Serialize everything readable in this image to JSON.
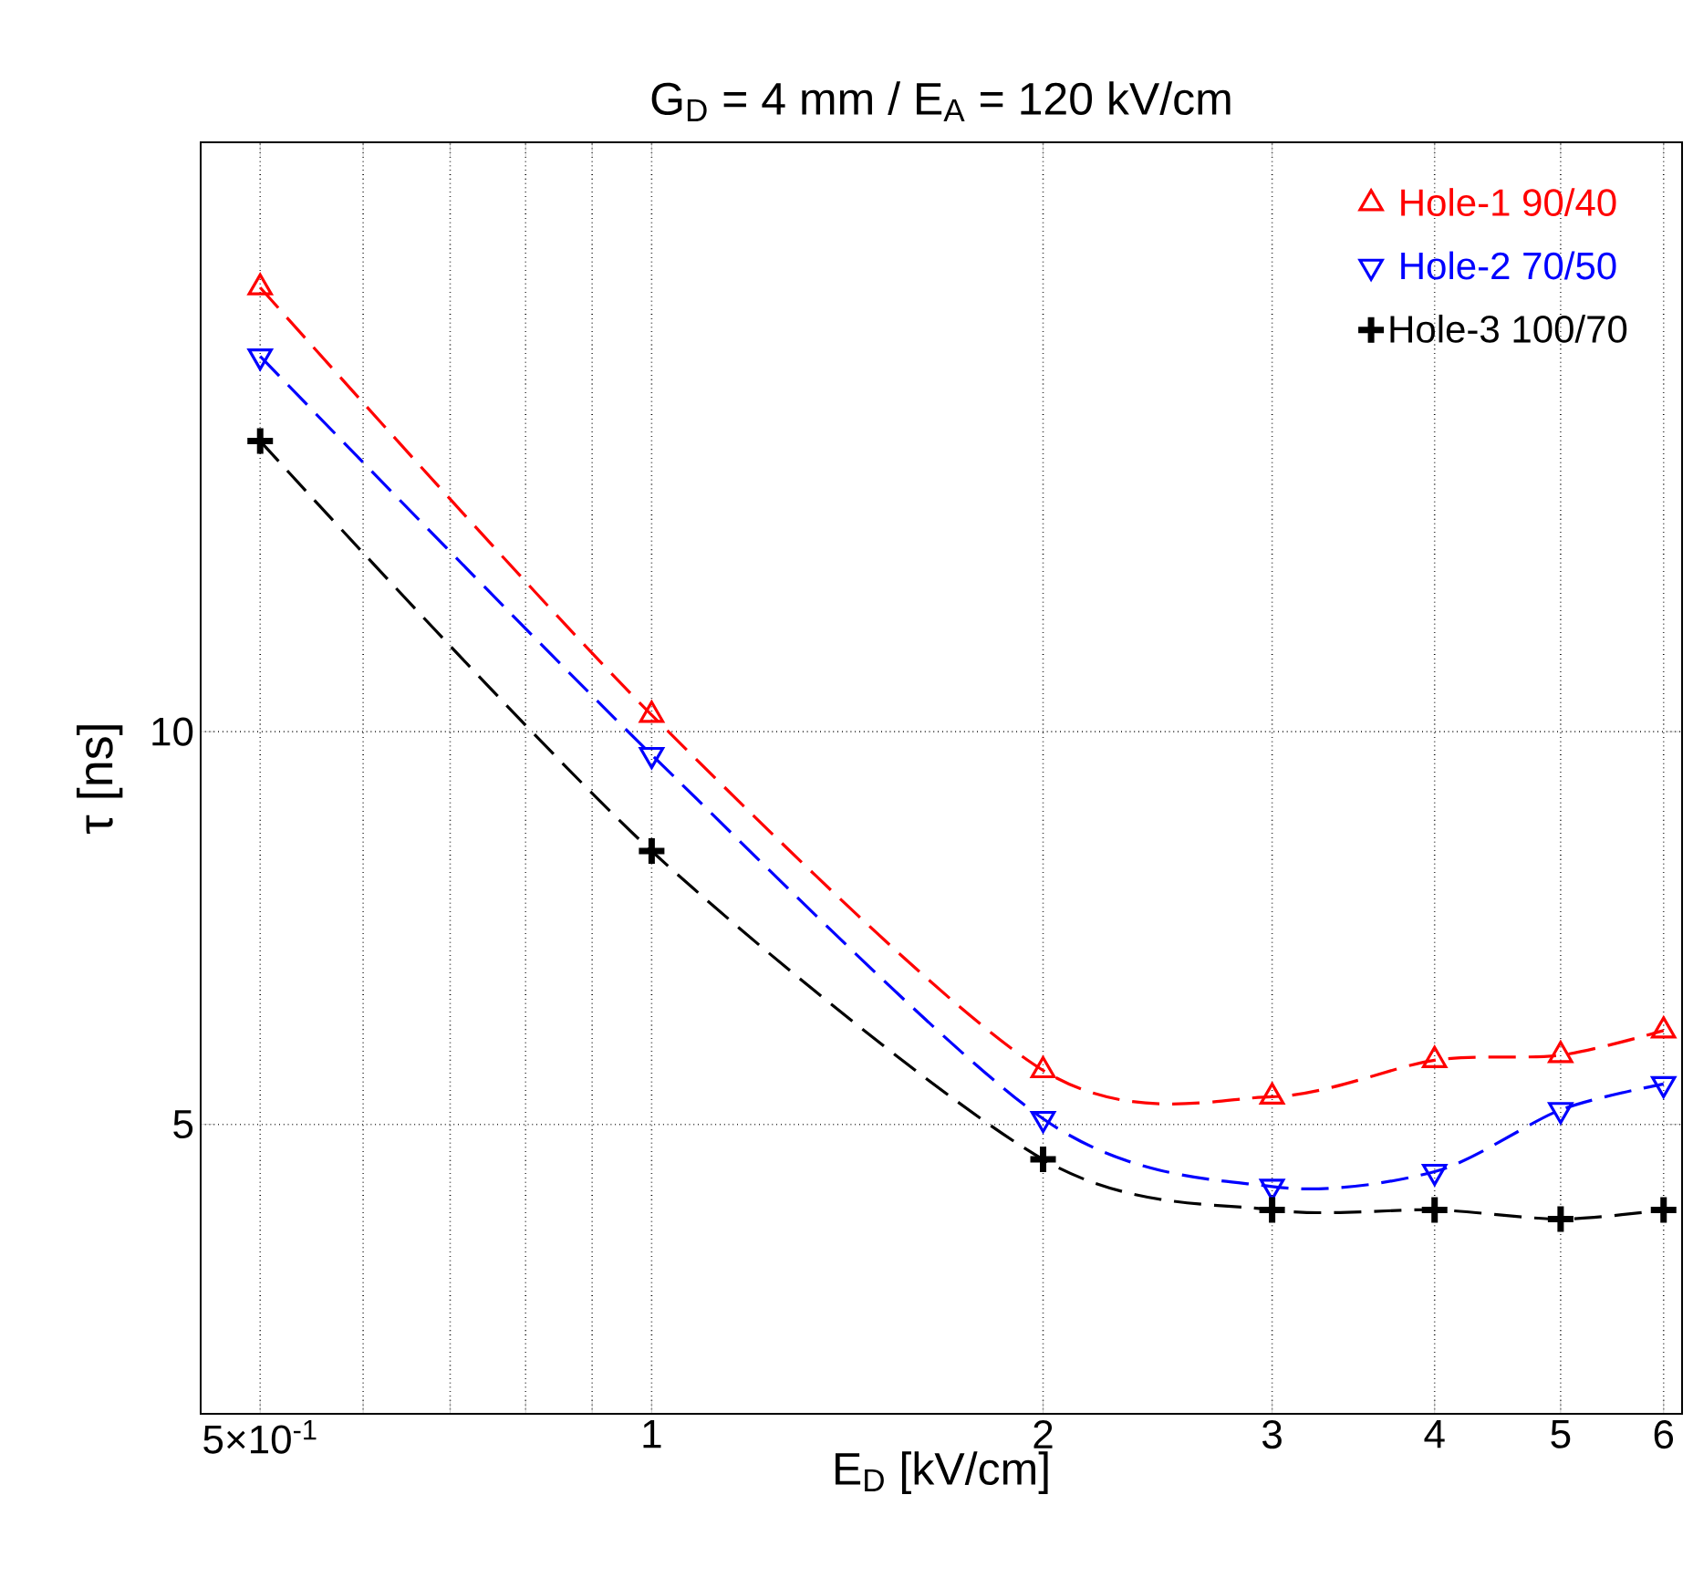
{
  "chart_data": {
    "type": "line",
    "title": "G$_{D}$ = 4 mm / E$_{A}$ = 120 kV/cm",
    "xlabel": "E$_{D}$ [kV/cm]",
    "ylabel": "τ [ns]",
    "log": "xy",
    "xlim": [
      0.45,
      6.2
    ],
    "ylim": [
      3,
      28.3
    ],
    "xticks": [
      {
        "value": 0.5,
        "label": "5×10$^{-1}$"
      },
      {
        "value": 0.6,
        "label": null
      },
      {
        "value": 0.7,
        "label": null
      },
      {
        "value": 0.8,
        "label": null
      },
      {
        "value": 0.9,
        "label": null
      },
      1,
      2,
      3,
      4,
      5,
      6
    ],
    "yticks": [
      5,
      10
    ],
    "grid": true,
    "legend": "top right",
    "line_style": "dashed",
    "x": [
      0.5,
      1,
      2,
      3,
      4,
      5,
      6
    ],
    "series": [
      {
        "name": "Hole-1 90/40",
        "color": "#ff0000",
        "marker": "triangle",
        "values": [
          21.9,
          10.3,
          5.5,
          5.25,
          5.6,
          5.65,
          5.9
        ]
      },
      {
        "name": "Hole-2 70/50",
        "color": "#0000ff",
        "marker": "triangle-down",
        "values": [
          19.4,
          9.6,
          5.05,
          4.48,
          4.6,
          5.13,
          5.37
        ]
      },
      {
        "name": "Hole-3 100/70",
        "color": "#000000",
        "marker": "cross",
        "values": [
          16.7,
          8.1,
          4.7,
          4.3,
          4.3,
          4.23,
          4.3
        ]
      }
    ]
  }
}
